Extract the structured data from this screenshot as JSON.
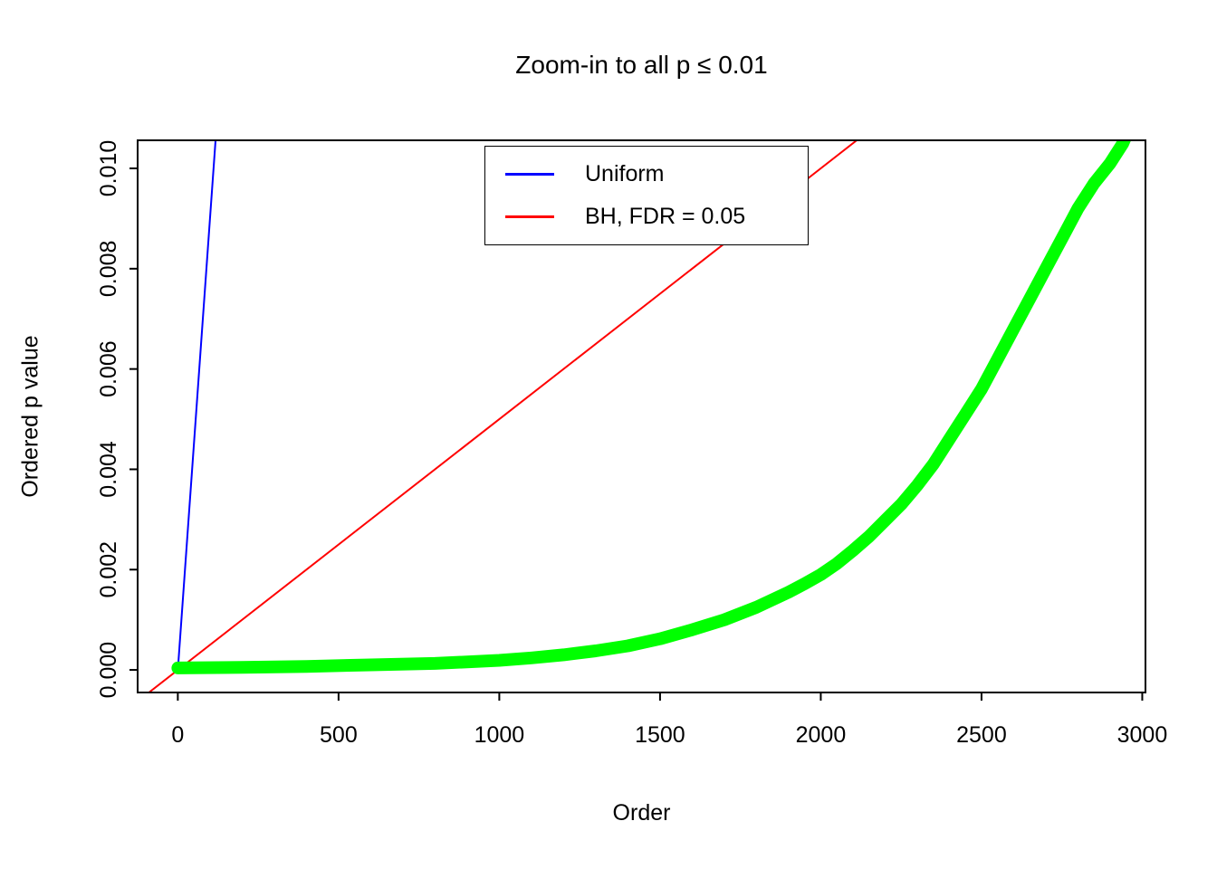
{
  "chart_data": {
    "type": "line",
    "title": "Zoom-in to all p ≤ 0.01",
    "xlabel": "Order",
    "ylabel": "Ordered p value",
    "xlim": [
      -125,
      3010
    ],
    "ylim": [
      -0.00045,
      0.01056
    ],
    "x_ticks": [
      0,
      500,
      1000,
      1500,
      2000,
      2500,
      3000
    ],
    "x_tick_labels": [
      "0",
      "500",
      "1000",
      "1500",
      "2000",
      "2500",
      "3000"
    ],
    "y_ticks": [
      0.0,
      0.002,
      0.004,
      0.006,
      0.008,
      0.01
    ],
    "y_tick_labels": [
      "0.000",
      "0.002",
      "0.004",
      "0.006",
      "0.008",
      "0.010"
    ],
    "grid": false,
    "legend": {
      "position": "top-center",
      "border": true,
      "entries": [
        {
          "label": "Uniform",
          "color": "#0000FF"
        },
        {
          "label": "BH, FDR = 0.05",
          "color": "#FF0000"
        }
      ]
    },
    "series": [
      {
        "id": "uniform",
        "name": "Uniform",
        "color": "#0000FF",
        "width": 2,
        "points": [
          [
            0,
            0.0
          ],
          [
            120,
            0.0108
          ]
        ]
      },
      {
        "id": "bh-threshold",
        "name": "BH, FDR = 0.05",
        "color": "#FF0000",
        "width": 2,
        "points": [
          [
            -100,
            -0.0005
          ],
          [
            2200,
            0.011
          ]
        ]
      },
      {
        "id": "observed-p-values",
        "name": "Ordered p values",
        "color": "#00FF00",
        "width": 14,
        "points": [
          [
            0,
            4e-05
          ],
          [
            200,
            5e-05
          ],
          [
            400,
            7e-05
          ],
          [
            600,
            0.0001
          ],
          [
            800,
            0.00013
          ],
          [
            1000,
            0.00019
          ],
          [
            1100,
            0.00024
          ],
          [
            1200,
            0.0003
          ],
          [
            1300,
            0.00038
          ],
          [
            1400,
            0.00048
          ],
          [
            1500,
            0.00062
          ],
          [
            1600,
            0.0008
          ],
          [
            1700,
            0.001
          ],
          [
            1800,
            0.00125
          ],
          [
            1900,
            0.00155
          ],
          [
            1950,
            0.00172
          ],
          [
            2000,
            0.0019
          ],
          [
            2050,
            0.00212
          ],
          [
            2100,
            0.00238
          ],
          [
            2150,
            0.00266
          ],
          [
            2200,
            0.00298
          ],
          [
            2250,
            0.0033
          ],
          [
            2300,
            0.00368
          ],
          [
            2350,
            0.0041
          ],
          [
            2400,
            0.0046
          ],
          [
            2450,
            0.0051
          ],
          [
            2500,
            0.0056
          ],
          [
            2550,
            0.0062
          ],
          [
            2600,
            0.0068
          ],
          [
            2650,
            0.0074
          ],
          [
            2700,
            0.008
          ],
          [
            2750,
            0.0086
          ],
          [
            2800,
            0.0092
          ],
          [
            2850,
            0.0097
          ],
          [
            2900,
            0.0101
          ],
          [
            2940,
            0.0105
          ],
          [
            2960,
            0.0108
          ]
        ]
      }
    ]
  }
}
